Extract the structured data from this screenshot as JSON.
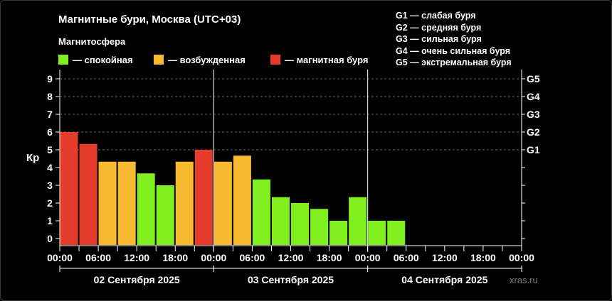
{
  "chart_data": {
    "type": "bar",
    "title": "Магнитные бури, Москва (UTC+03)",
    "subtitle": "Магнитосфера",
    "ylabel": "Кр",
    "ylim": [
      0,
      9
    ],
    "yticks": [
      "0",
      "1",
      "2",
      "3",
      "4",
      "5",
      "6",
      "7",
      "8",
      "9"
    ],
    "g_ticks": [
      {
        "kp": 5,
        "label": "G1"
      },
      {
        "kp": 6,
        "label": "G2"
      },
      {
        "kp": 7,
        "label": "G3"
      },
      {
        "kp": 8,
        "label": "G4"
      },
      {
        "kp": 9,
        "label": "G5"
      }
    ],
    "x_tick_labels": [
      "00:00",
      "06:00",
      "12:00",
      "18:00",
      "00:00",
      "06:00",
      "12:00",
      "18:00",
      "00:00",
      "06:00",
      "12:00",
      "18:00",
      "00:00"
    ],
    "days": [
      "02 Сентября 2025",
      "03 Сентября 2025",
      "04 Сентября 2025"
    ],
    "slots_total": 24,
    "values": [
      6.0,
      5.33,
      4.33,
      4.33,
      3.67,
      3.0,
      4.33,
      5.0,
      4.33,
      4.67,
      3.33,
      2.33,
      2.0,
      1.67,
      1.0,
      2.33,
      1.0,
      1.0
    ],
    "legend": [
      {
        "key": "quiet",
        "label": "— спокойная",
        "color": "#7fef1f"
      },
      {
        "key": "excited",
        "label": "— возбужденная",
        "color": "#f7b92f"
      },
      {
        "key": "storm",
        "label": "— магнитная буря",
        "color": "#e53b2c"
      }
    ],
    "grid": "dashed horizontal at G-levels",
    "legend_placement": "top-left"
  },
  "g_scale": [
    "G1 — слабая буря",
    "G2 — средняя буря",
    "G3 — сильная буря",
    "G4 — очень сильная буря",
    "G5 — экстремальная буря"
  ],
  "watermark": "xras.ru"
}
